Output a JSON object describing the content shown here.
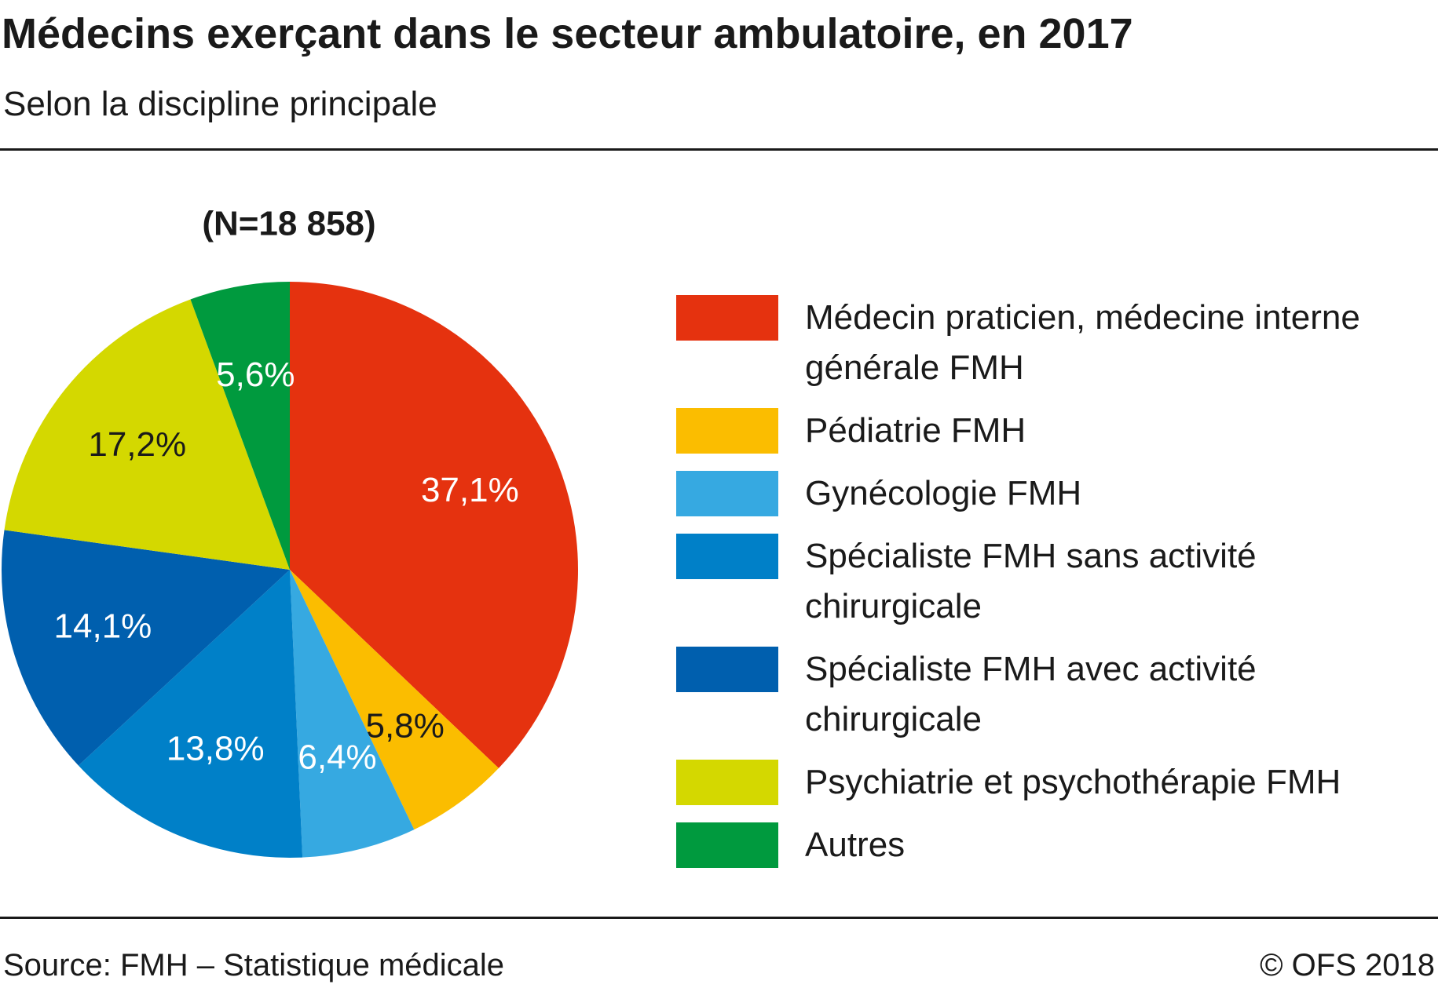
{
  "chart_data": {
    "type": "pie",
    "title": "Médecins exerçant dans le secteur ambulatoire, en 2017",
    "subtitle": "Selon la discipline principale",
    "annotation": "(N=18 858)",
    "categories": [
      "Médecin praticien, médecine interne générale FMH",
      "Pédiatrie FMH",
      "Gynécologie FMH",
      "Spécialiste FMH sans activité chirurgicale",
      "Spécialiste FMH avec activité chirurgicale",
      "Psychiatrie et psychothérapie FMH",
      "Autres"
    ],
    "values": [
      37.1,
      5.8,
      6.4,
      13.8,
      14.1,
      17.2,
      5.6
    ],
    "value_labels": [
      "37,1%",
      "5,8%",
      "6,4%",
      "13,8%",
      "14,1%",
      "17,2%",
      "5,6%"
    ],
    "colors": [
      "#e5320f",
      "#fbbd00",
      "#36a9e1",
      "#0080c8",
      "#005fae",
      "#d4d800",
      "#009a3e"
    ],
    "source": "Source: FMH – Statistique médicale",
    "copyright": "© OFS 2018"
  }
}
